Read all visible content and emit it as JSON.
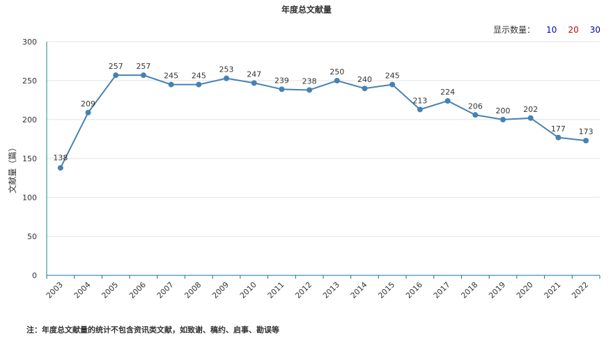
{
  "chart_data": {
    "type": "line",
    "title": "年度总文献量",
    "ylabel": "文献量（篇）",
    "xlabel": "",
    "ylim": [
      0,
      300
    ],
    "yticks": [
      0,
      50,
      100,
      150,
      200,
      250,
      300
    ],
    "categories": [
      "2003",
      "2004",
      "2005",
      "2006",
      "2007",
      "2008",
      "2009",
      "2010",
      "2011",
      "2012",
      "2013",
      "2014",
      "2015",
      "2016",
      "2017",
      "2018",
      "2019",
      "2020",
      "2021",
      "2022"
    ],
    "series": [
      {
        "values": [
          138,
          209,
          257,
          257,
          245,
          245,
          253,
          247,
          239,
          238,
          250,
          240,
          245,
          213,
          224,
          206,
          200,
          202,
          177,
          173
        ]
      }
    ],
    "grid": true,
    "line_color": "#4682b4"
  },
  "controls": {
    "label": "显示数量：",
    "options": [
      {
        "label": "10",
        "color": "#0000cc"
      },
      {
        "label": "20",
        "color": "#cc0000"
      },
      {
        "label": "30",
        "color": "#000099"
      }
    ]
  },
  "note": "注：年度总文献量的统计不包含资讯类文献，如致谢、稿约、启事、勘误等"
}
